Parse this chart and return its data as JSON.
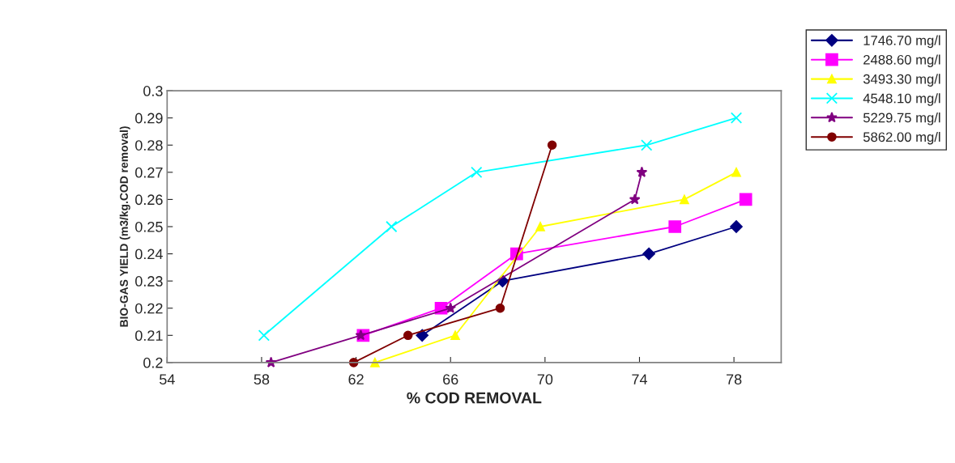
{
  "chart_data": {
    "type": "line",
    "xlabel": "% COD REMOVAL",
    "ylabel": "BIO-GAS YIELD (m3/kg.COD removal)",
    "xlim": [
      54,
      80
    ],
    "xticks": [
      54,
      58,
      62,
      66,
      70,
      74,
      78
    ],
    "ylim": [
      0.2,
      0.3
    ],
    "yticks": [
      0.2,
      0.21,
      0.22,
      0.23,
      0.24,
      0.25,
      0.26,
      0.27,
      0.28,
      0.29,
      0.3
    ],
    "grid": false,
    "legend": "top right",
    "line_style": "solid",
    "series": [
      {
        "name": "1746.70 mg/l",
        "color": "#000080",
        "marker": "diamond",
        "x": [
          64.8,
          68.2,
          74.4,
          78.1
        ],
        "values": [
          0.21,
          0.23,
          0.24,
          0.25
        ]
      },
      {
        "name": "2488.60 mg/l",
        "color": "#ff00ff",
        "marker": "square",
        "x": [
          62.3,
          65.6,
          68.8,
          75.5,
          78.5
        ],
        "values": [
          0.21,
          0.22,
          0.24,
          0.25,
          0.26
        ]
      },
      {
        "name": "3493.30 mg/l",
        "color": "#ffff00",
        "marker": "triangle",
        "x": [
          62.8,
          66.2,
          69.8,
          75.9,
          78.1
        ],
        "values": [
          0.2,
          0.21,
          0.25,
          0.26,
          0.27
        ]
      },
      {
        "name": "4548.10 mg/l",
        "color": "#00ffff",
        "marker": "cross",
        "x": [
          58.1,
          63.5,
          67.1,
          74.3,
          78.1
        ],
        "values": [
          0.21,
          0.25,
          0.27,
          0.28,
          0.29
        ]
      },
      {
        "name": "5229.75 mg/l",
        "color": "#800080",
        "marker": "star",
        "x": [
          58.4,
          62.2,
          66.0,
          73.8,
          74.1
        ],
        "values": [
          0.2,
          0.21,
          0.22,
          0.26,
          0.27
        ]
      },
      {
        "name": "5862.00 mg/l",
        "color": "#800000",
        "marker": "circle",
        "x": [
          61.9,
          64.2,
          68.1,
          70.3
        ],
        "values": [
          0.2,
          0.21,
          0.22,
          0.28
        ]
      }
    ]
  }
}
